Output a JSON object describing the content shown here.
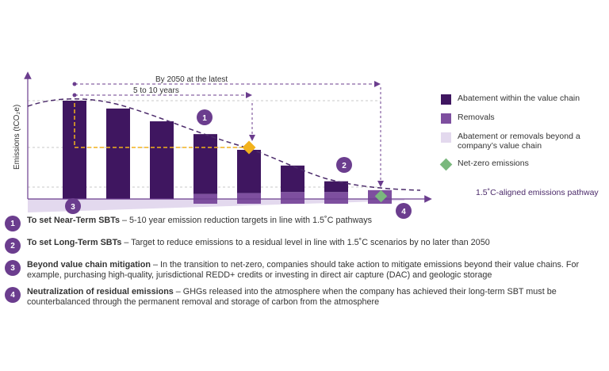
{
  "chart_data": {
    "type": "bar",
    "title": "",
    "ylabel": "Emissions (tCO₂e)",
    "xlabel": "",
    "abatement_values": [
      100,
      92,
      79,
      66,
      50,
      34,
      18,
      7
    ],
    "removal_values": [
      0,
      0,
      0,
      5,
      6,
      7,
      7,
      9
    ],
    "beyond_value_chain": "shaded wedge below baseline",
    "pathway_label": "1.5˚C-aligned emissions pathway",
    "brackets": [
      {
        "label": "By 2050 at the latest"
      },
      {
        "label": "5 to 10 years"
      }
    ],
    "markers": [
      "1",
      "2",
      "3",
      "4"
    ],
    "colors": {
      "abatement": "#3f1660",
      "removals": "#7e4f9f",
      "beyond": "#e3d9ee",
      "net_zero": "#7ab87d",
      "near_term": "#f2b21c",
      "pathway": "#4b2a6a",
      "badge": "#6b3d8e"
    }
  },
  "legend": [
    {
      "label": "Abatement within the value chain",
      "color": "#3f1660",
      "shape": "square"
    },
    {
      "label": "Removals",
      "color": "#7e4f9f",
      "shape": "square"
    },
    {
      "label": "Abatement or removals beyond a company’s value chain",
      "color": "#e3d9ee",
      "shape": "square"
    },
    {
      "label": "Net-zero emissions",
      "color": "#7ab87d",
      "shape": "diamond"
    }
  ],
  "notes": [
    {
      "num": "1",
      "title": "To set Near-Term SBTs",
      "text": " – 5-10 year emission reduction targets in line with 1.5˚C pathways"
    },
    {
      "num": "2",
      "title": "To set Long-Term SBTs",
      "text": " – Target to reduce emissions to a residual level in line with 1.5˚C scenarios by no later than 2050"
    },
    {
      "num": "3",
      "title": "Beyond value chain mitigation",
      "text": " – In the transition to net-zero, companies should take action to mitigate emissions beyond their value chains. For example, purchasing high-quality, jurisdictional REDD+ credits or investing in direct air capture (DAC) and geologic storage"
    },
    {
      "num": "4",
      "title": "Neutralization of residual emissions",
      "text": " – GHGs released into the atmosphere when the company has achieved their long-term SBT must be counterbalanced through the permanent removal and storage of carbon from the atmosphere"
    }
  ]
}
